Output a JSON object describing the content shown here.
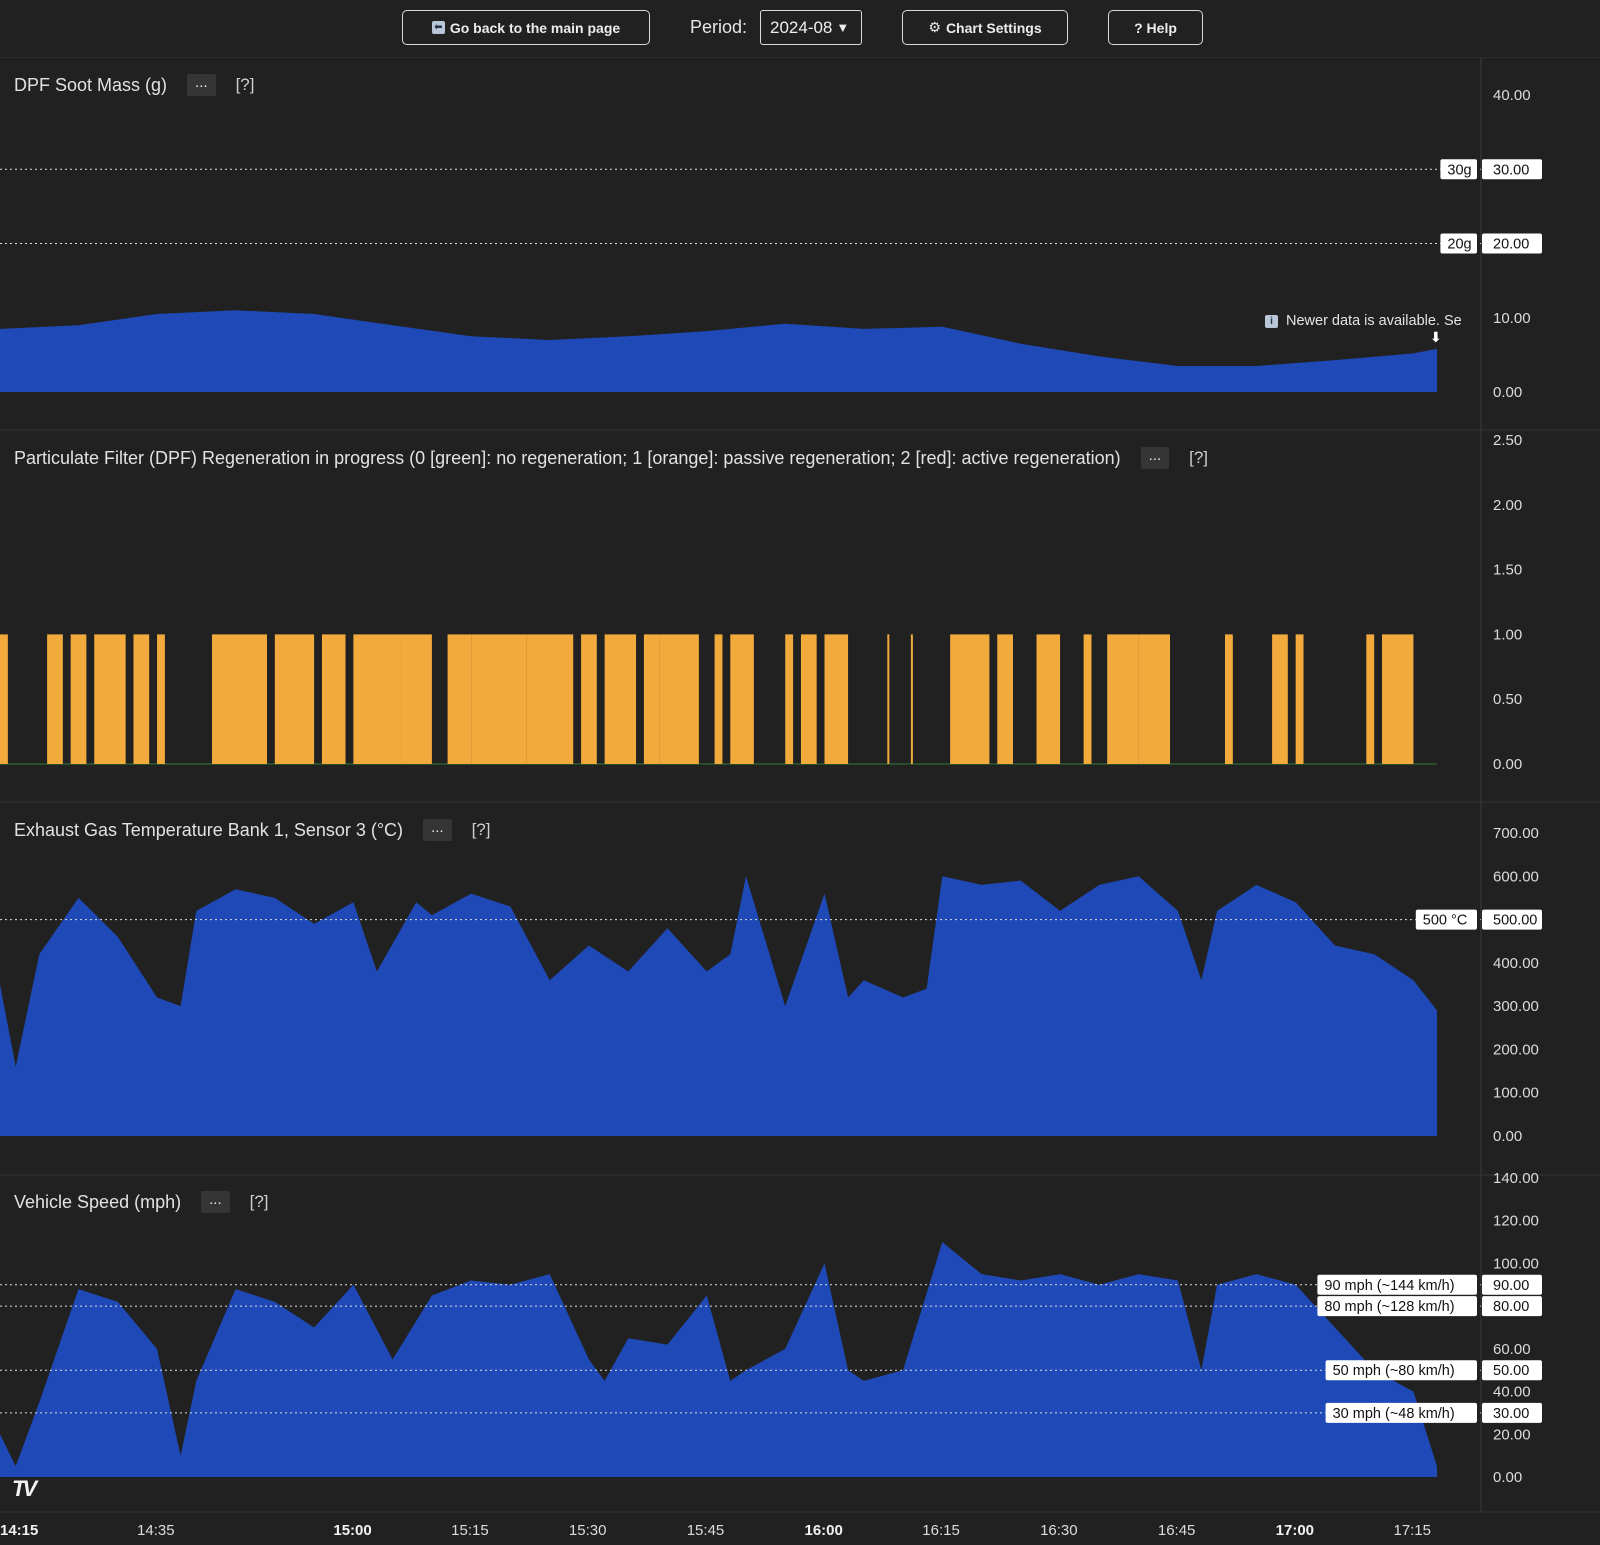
{
  "toolbar": {
    "back_label": "Go back to the main page",
    "period_label": "Period:",
    "period_value": "2024-08",
    "chart_settings_label": "Chart Settings",
    "help_label": "? Help"
  },
  "notice": "Newer data is available. Se",
  "chart_data": [
    {
      "type": "area",
      "title": "DPF Soot Mass (g)",
      "menu_label": "...",
      "help_label": "[?]",
      "ylim": [
        0,
        40
      ],
      "yticks": [
        "40.00",
        "30.00",
        "20.00",
        "10.00",
        "0.00"
      ],
      "color": "#1e49b6",
      "x": [
        "14:15",
        "14:25",
        "14:35",
        "14:45",
        "14:55",
        "15:05",
        "15:15",
        "15:25",
        "15:35",
        "15:45",
        "15:55",
        "16:05",
        "16:15",
        "16:25",
        "16:35",
        "16:45",
        "16:55",
        "17:05",
        "17:15",
        "17:18"
      ],
      "values": [
        8.5,
        9.0,
        10.5,
        11.0,
        10.5,
        9.0,
        7.5,
        7.0,
        7.5,
        8.2,
        9.2,
        8.5,
        8.8,
        6.5,
        4.8,
        3.5,
        3.5,
        4.3,
        5.2,
        5.8
      ],
      "levels": [
        {
          "value": 30,
          "label": "30g",
          "axis_label": "30.00"
        },
        {
          "value": 20,
          "label": "20g",
          "axis_label": "20.00"
        }
      ]
    },
    {
      "type": "bar",
      "title": "Particulate Filter (DPF) Regeneration in progress (0 [green]: no regeneration; 1 [orange]: passive regeneration; 2 [red]: active regeneration)",
      "menu_label": "...",
      "help_label": "[?]",
      "ylim": [
        0,
        2.5
      ],
      "yticks": [
        "2.50",
        "2.00",
        "1.50",
        "1.00",
        "0.50",
        "0.00"
      ],
      "value": 1,
      "colors": {
        "passive": "#f3aa3c",
        "none": "#2e7d32"
      },
      "passive_intervals": [
        [
          "14:15",
          "14:16"
        ],
        [
          "14:21",
          "14:23"
        ],
        [
          "14:24",
          "14:26"
        ],
        [
          "14:27",
          "14:31"
        ],
        [
          "14:32",
          "14:34"
        ],
        [
          "14:35",
          "14:36"
        ],
        [
          "14:42",
          "14:49"
        ],
        [
          "14:50",
          "14:55"
        ],
        [
          "14:56",
          "14:59"
        ],
        [
          "15:00",
          "15:06"
        ],
        [
          "15:06",
          "15:10"
        ],
        [
          "15:12",
          "15:15"
        ],
        [
          "15:15",
          "15:22"
        ],
        [
          "15:22",
          "15:28"
        ],
        [
          "15:29",
          "15:31"
        ],
        [
          "15:32",
          "15:36"
        ],
        [
          "15:37",
          "15:39"
        ],
        [
          "15:39",
          "15:44"
        ],
        [
          "15:46",
          "15:47"
        ],
        [
          "15:48",
          "15:51"
        ],
        [
          "15:55",
          "15:56"
        ],
        [
          "15:57",
          "15:59"
        ],
        [
          "16:00",
          "16:03"
        ],
        [
          "16:08",
          "16:08"
        ],
        [
          "16:11",
          "16:11"
        ],
        [
          "16:16",
          "16:21"
        ],
        [
          "16:22",
          "16:24"
        ],
        [
          "16:27",
          "16:30"
        ],
        [
          "16:33",
          "16:34"
        ],
        [
          "16:36",
          "16:40"
        ],
        [
          "16:40",
          "16:44"
        ],
        [
          "16:51",
          "16:52"
        ],
        [
          "16:57",
          "16:59"
        ],
        [
          "17:00",
          "17:01"
        ],
        [
          "17:09",
          "17:10"
        ],
        [
          "17:11",
          "17:15"
        ]
      ]
    },
    {
      "type": "area",
      "title": "Exhaust Gas Temperature Bank 1, Sensor 3 (°C)",
      "menu_label": "...",
      "help_label": "[?]",
      "ylim": [
        0,
        700
      ],
      "yticks": [
        "700.00",
        "600.00",
        "500.00",
        "400.00",
        "300.00",
        "200.00",
        "100.00",
        "0.00"
      ],
      "color": "#1e49b6",
      "x": [
        "14:15",
        "14:17",
        "14:20",
        "14:25",
        "14:30",
        "14:35",
        "14:38",
        "14:40",
        "14:45",
        "14:50",
        "14:55",
        "15:00",
        "15:03",
        "15:08",
        "15:10",
        "15:15",
        "15:20",
        "15:25",
        "15:30",
        "15:35",
        "15:40",
        "15:45",
        "15:48",
        "15:50",
        "15:55",
        "16:00",
        "16:03",
        "16:05",
        "16:10",
        "16:13",
        "16:15",
        "16:20",
        "16:25",
        "16:30",
        "16:35",
        "16:40",
        "16:45",
        "16:48",
        "16:50",
        "16:55",
        "17:00",
        "17:05",
        "17:10",
        "17:15",
        "17:18"
      ],
      "values": [
        350,
        160,
        420,
        550,
        460,
        320,
        300,
        520,
        570,
        550,
        490,
        540,
        380,
        540,
        510,
        560,
        530,
        360,
        440,
        380,
        480,
        380,
        420,
        600,
        300,
        560,
        320,
        360,
        320,
        340,
        600,
        580,
        590,
        520,
        580,
        600,
        520,
        360,
        520,
        580,
        540,
        440,
        420,
        360,
        290
      ],
      "levels": [
        {
          "value": 500,
          "label": "500 °C",
          "axis_label": "500.00"
        }
      ]
    },
    {
      "type": "area",
      "title": "Vehicle Speed (mph)",
      "menu_label": "...",
      "help_label": "[?]",
      "ylim": [
        0,
        140
      ],
      "yticks": [
        "140.00",
        "120.00",
        "100.00",
        "80.00",
        "60.00",
        "40.00",
        "20.00",
        "0.00"
      ],
      "color": "#1e49b6",
      "x": [
        "14:15",
        "14:17",
        "14:20",
        "14:25",
        "14:30",
        "14:35",
        "14:38",
        "14:40",
        "14:45",
        "14:50",
        "14:55",
        "15:00",
        "15:05",
        "15:10",
        "15:15",
        "15:20",
        "15:25",
        "15:30",
        "15:32",
        "15:35",
        "15:40",
        "15:45",
        "15:48",
        "15:50",
        "15:55",
        "16:00",
        "16:03",
        "16:05",
        "16:10",
        "16:15",
        "16:20",
        "16:25",
        "16:30",
        "16:35",
        "16:40",
        "16:45",
        "16:48",
        "16:50",
        "16:55",
        "17:00",
        "17:05",
        "17:10",
        "17:15",
        "17:18"
      ],
      "values": [
        20,
        5,
        35,
        88,
        82,
        60,
        10,
        45,
        88,
        82,
        70,
        90,
        55,
        85,
        92,
        90,
        95,
        55,
        45,
        65,
        62,
        85,
        45,
        50,
        60,
        100,
        50,
        45,
        50,
        110,
        95,
        92,
        95,
        90,
        95,
        92,
        50,
        90,
        95,
        90,
        70,
        50,
        40,
        5
      ],
      "levels": [
        {
          "value": 90,
          "label": "90 mph (~144 km/h)",
          "axis_label": "90.00"
        },
        {
          "value": 80,
          "label": "80 mph (~128 km/h)",
          "axis_label": "80.00"
        },
        {
          "value": 50,
          "label": "50 mph (~80 km/h)",
          "axis_label": "50.00"
        },
        {
          "value": 30,
          "label": "30 mph (~48 km/h)",
          "axis_label": "30.00"
        }
      ]
    }
  ],
  "time_axis": {
    "labels": [
      {
        "time": "14:15",
        "text": "14:15",
        "bold": true
      },
      {
        "time": "14:35",
        "text": "14:35",
        "bold": false
      },
      {
        "time": "15:00",
        "text": "15:00",
        "bold": true
      },
      {
        "time": "15:15",
        "text": "15:15",
        "bold": false
      },
      {
        "time": "15:30",
        "text": "15:30",
        "bold": false
      },
      {
        "time": "15:45",
        "text": "15:45",
        "bold": false
      },
      {
        "time": "16:00",
        "text": "16:00",
        "bold": true
      },
      {
        "time": "16:15",
        "text": "16:15",
        "bold": false
      },
      {
        "time": "16:30",
        "text": "16:30",
        "bold": false
      },
      {
        "time": "16:45",
        "text": "16:45",
        "bold": false
      },
      {
        "time": "17:00",
        "text": "17:00",
        "bold": true
      },
      {
        "time": "17:15",
        "text": "17:15",
        "bold": false
      }
    ],
    "start": "14:15",
    "end": "17:18"
  }
}
